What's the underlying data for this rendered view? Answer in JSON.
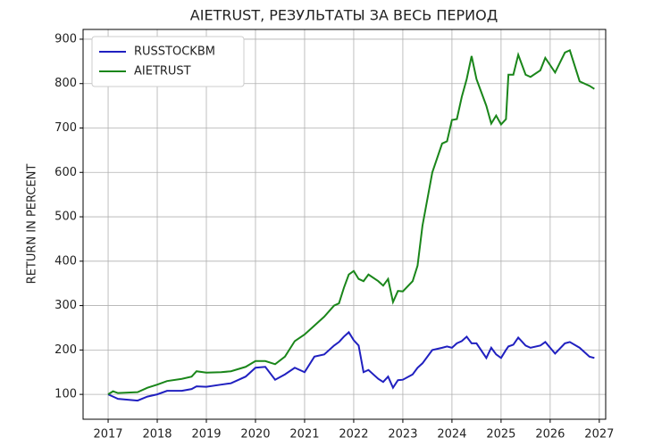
{
  "chart_data": {
    "type": "line",
    "title": "AIETRUST, РЕЗУЛЬТАТЫ ЗА ВЕСЬ ПЕРИОД",
    "y_label": "RETURN IN PERCENT",
    "x": [
      2017.0,
      2017.1,
      2017.2,
      2017.4,
      2017.6,
      2017.8,
      2018.0,
      2018.2,
      2018.5,
      2018.7,
      2018.8,
      2019.0,
      2019.3,
      2019.5,
      2019.8,
      2020.0,
      2020.2,
      2020.4,
      2020.6,
      2020.8,
      2021.0,
      2021.2,
      2021.4,
      2021.6,
      2021.7,
      2021.8,
      2021.9,
      2022.0,
      2022.1,
      2022.2,
      2022.3,
      2022.5,
      2022.6,
      2022.7,
      2022.8,
      2022.9,
      2023.0,
      2023.2,
      2023.3,
      2023.4,
      2023.6,
      2023.8,
      2023.9,
      2024.0,
      2024.1,
      2024.2,
      2024.3,
      2024.4,
      2024.5,
      2024.7,
      2024.8,
      2024.9,
      2025.0,
      2025.1,
      2025.15,
      2025.25,
      2025.35,
      2025.5,
      2025.6,
      2025.8,
      2025.9,
      2026.1,
      2026.3,
      2026.4,
      2026.6,
      2026.8,
      2026.9
    ],
    "series": [
      {
        "name": "RUSSTOCKBM",
        "color": "#2020c0",
        "values": [
          100,
          95,
          90,
          88,
          86,
          95,
          100,
          108,
          108,
          112,
          118,
          117,
          122,
          125,
          140,
          160,
          162,
          133,
          145,
          160,
          150,
          185,
          190,
          210,
          218,
          230,
          240,
          222,
          210,
          150,
          155,
          135,
          128,
          140,
          115,
          132,
          133,
          145,
          160,
          170,
          200,
          205,
          208,
          205,
          215,
          220,
          230,
          215,
          215,
          182,
          205,
          190,
          182,
          200,
          208,
          212,
          228,
          210,
          205,
          210,
          218,
          192,
          215,
          218,
          205,
          185,
          182
        ]
      },
      {
        "name": "AIETRUST",
        "color": "#1a861a",
        "values": [
          100,
          107,
          103,
          104,
          105,
          115,
          122,
          130,
          135,
          140,
          152,
          149,
          150,
          152,
          162,
          175,
          175,
          168,
          185,
          220,
          235,
          255,
          275,
          300,
          305,
          340,
          370,
          378,
          360,
          355,
          370,
          355,
          345,
          360,
          308,
          333,
          332,
          355,
          390,
          480,
          600,
          665,
          670,
          718,
          720,
          770,
          810,
          862,
          810,
          750,
          710,
          728,
          708,
          720,
          820,
          820,
          865,
          820,
          815,
          830,
          858,
          825,
          870,
          875,
          805,
          795,
          788
        ]
      }
    ],
    "xlim": [
      2016.49,
      2027.13
    ],
    "xticks": [
      2017,
      2018,
      2019,
      2020,
      2021,
      2022,
      2023,
      2024,
      2025,
      2026,
      2027
    ],
    "ylim": [
      44,
      922
    ],
    "yticks": [
      100,
      200,
      300,
      400,
      500,
      600,
      700,
      800,
      900
    ],
    "grid": true,
    "legend": "upper left"
  }
}
